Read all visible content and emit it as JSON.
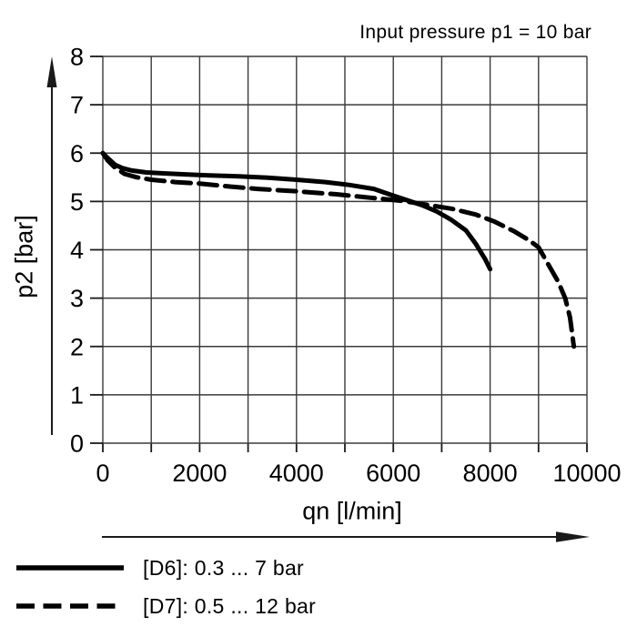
{
  "chart_data": {
    "type": "line",
    "title": "Input pressure p1 = 10 bar",
    "xlabel": "qn [l/min]",
    "ylabel": "p2 [bar]",
    "xlim": [
      0,
      10000
    ],
    "ylim": [
      0,
      8
    ],
    "xticks": [
      0,
      2000,
      4000,
      6000,
      8000,
      10000
    ],
    "yticks": [
      0,
      1,
      2,
      3,
      4,
      5,
      6,
      7,
      8
    ],
    "x_grid_step": 1000,
    "y_grid_step": 1,
    "grid": true,
    "legend_position": "below-left",
    "colors": {
      "curve": "#000000",
      "grid": "#3a3a3a",
      "axis": "#1a1a1a",
      "text": "#000000"
    },
    "series": [
      {
        "name": "D6",
        "label": "[D6]: 0.3 ... 7 bar",
        "style": "solid",
        "points": [
          [
            0,
            6.0
          ],
          [
            100,
            5.9
          ],
          [
            250,
            5.76
          ],
          [
            400,
            5.69
          ],
          [
            600,
            5.64
          ],
          [
            900,
            5.6
          ],
          [
            1300,
            5.58
          ],
          [
            1700,
            5.56
          ],
          [
            2200,
            5.54
          ],
          [
            2800,
            5.52
          ],
          [
            3400,
            5.49
          ],
          [
            4000,
            5.45
          ],
          [
            4600,
            5.4
          ],
          [
            5100,
            5.34
          ],
          [
            5600,
            5.26
          ],
          [
            6000,
            5.12
          ],
          [
            6300,
            5.02
          ],
          [
            6600,
            4.92
          ],
          [
            6900,
            4.79
          ],
          [
            7200,
            4.62
          ],
          [
            7500,
            4.4
          ],
          [
            7700,
            4.13
          ],
          [
            7900,
            3.8
          ],
          [
            8000,
            3.6
          ]
        ]
      },
      {
        "name": "D7",
        "label": "[D7]: 0.5 ... 12 bar",
        "style": "dashed",
        "points": [
          [
            0,
            6.0
          ],
          [
            100,
            5.85
          ],
          [
            250,
            5.7
          ],
          [
            450,
            5.57
          ],
          [
            700,
            5.5
          ],
          [
            1000,
            5.45
          ],
          [
            1500,
            5.4
          ],
          [
            2000,
            5.37
          ],
          [
            2600,
            5.31
          ],
          [
            3200,
            5.26
          ],
          [
            4000,
            5.21
          ],
          [
            4800,
            5.15
          ],
          [
            5600,
            5.07
          ],
          [
            6200,
            5.01
          ],
          [
            6700,
            4.93
          ],
          [
            7200,
            4.85
          ],
          [
            7700,
            4.73
          ],
          [
            8100,
            4.58
          ],
          [
            8500,
            4.38
          ],
          [
            8800,
            4.2
          ],
          [
            9000,
            4.05
          ],
          [
            9200,
            3.7
          ],
          [
            9400,
            3.35
          ],
          [
            9550,
            3.0
          ],
          [
            9650,
            2.6
          ],
          [
            9730,
            2.0
          ]
        ]
      }
    ]
  }
}
